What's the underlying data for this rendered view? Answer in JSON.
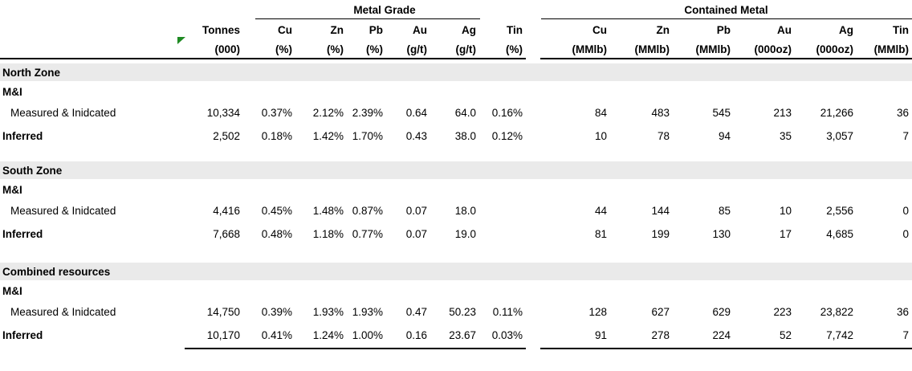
{
  "table": {
    "groups": {
      "metal_grade": "Metal Grade",
      "contained_metal": "Contained Metal"
    },
    "columns": {
      "tonnes": {
        "name": "Tonnes",
        "unit": "(000)"
      },
      "grades": [
        {
          "name": "Cu",
          "unit": "(%)"
        },
        {
          "name": "Zn",
          "unit": "(%)"
        },
        {
          "name": "Pb",
          "unit": "(%)"
        },
        {
          "name": "Au",
          "unit": "(g/t)"
        },
        {
          "name": "Ag",
          "unit": "(g/t)"
        },
        {
          "name": "Tin",
          "unit": "(%)"
        }
      ],
      "metals": [
        {
          "name": "Cu",
          "unit": "(MMlb)"
        },
        {
          "name": "Zn",
          "unit": "(MMlb)"
        },
        {
          "name": "Pb",
          "unit": "(MMlb)"
        },
        {
          "name": "Au",
          "unit": "(000oz)"
        },
        {
          "name": "Ag",
          "unit": "(000oz)"
        },
        {
          "name": "Tin",
          "unit": "(MMlb)"
        }
      ]
    },
    "marker": {
      "icon": "green-triangle",
      "color": "#1f8a23"
    },
    "band_color": "#eaeaea",
    "sections": [
      {
        "title": "North Zone",
        "rows": [
          {
            "label": "M&I",
            "bold": true,
            "indent": false,
            "values": [
              "",
              "",
              "",
              "",
              "",
              "",
              "",
              "",
              "",
              "",
              "",
              "",
              ""
            ]
          },
          {
            "label": "Measured & Inidcated",
            "bold": false,
            "indent": true,
            "values": [
              "10,334",
              "0.37%",
              "2.12%",
              "2.39%",
              "0.64",
              "64.0",
              "0.16%",
              "84",
              "483",
              "545",
              "213",
              "21,266",
              "36"
            ]
          },
          {
            "label": "Inferred",
            "bold": true,
            "indent": false,
            "values": [
              "2,502",
              "0.18%",
              "1.42%",
              "1.70%",
              "0.43",
              "38.0",
              "0.12%",
              "10",
              "78",
              "94",
              "35",
              "3,057",
              "7"
            ]
          }
        ]
      },
      {
        "title": "South Zone",
        "rows": [
          {
            "label": "M&I",
            "bold": true,
            "indent": false,
            "values": [
              "",
              "",
              "",
              "",
              "",
              "",
              "",
              "",
              "",
              "",
              "",
              "",
              ""
            ]
          },
          {
            "label": "Measured & Inidcated",
            "bold": false,
            "indent": true,
            "values": [
              "4,416",
              "0.45%",
              "1.48%",
              "0.87%",
              "0.07",
              "18.0",
              "",
              "44",
              "144",
              "85",
              "10",
              "2,556",
              "0"
            ]
          },
          {
            "label": "Inferred",
            "bold": true,
            "indent": false,
            "values": [
              "7,668",
              "0.48%",
              "1.18%",
              "0.77%",
              "0.07",
              "19.0",
              "",
              "81",
              "199",
              "130",
              "17",
              "4,685",
              "0"
            ]
          }
        ]
      },
      {
        "title": "Combined resources",
        "rows": [
          {
            "label": "M&I",
            "bold": true,
            "indent": false,
            "values": [
              "",
              "",
              "",
              "",
              "",
              "",
              "",
              "",
              "",
              "",
              "",
              "",
              ""
            ]
          },
          {
            "label": "Measured & Inidcated",
            "bold": false,
            "indent": true,
            "values": [
              "14,750",
              "0.39%",
              "1.93%",
              "1.93%",
              "0.47",
              "50.23",
              "0.11%",
              "128",
              "627",
              "629",
              "223",
              "23,822",
              "36"
            ]
          },
          {
            "label": "Inferred",
            "bold": true,
            "indent": false,
            "values": [
              "10,170",
              "0.41%",
              "1.24%",
              "1.00%",
              "0.16",
              "23.67",
              "0.03%",
              "91",
              "278",
              "224",
              "52",
              "7,742",
              "7"
            ]
          }
        ]
      }
    ]
  }
}
